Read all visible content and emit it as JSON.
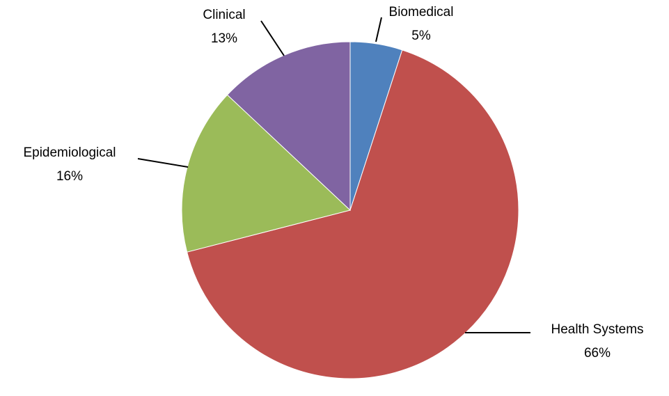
{
  "chart_data": {
    "type": "pie",
    "categories": [
      "Biomedical",
      "Health Systems",
      "Epidemiological",
      "Clinical"
    ],
    "values": [
      5,
      66,
      16,
      13
    ],
    "value_labels": [
      "5%",
      "66%",
      "16%",
      "13%"
    ],
    "colors": [
      "#4f81bd",
      "#c0504d",
      "#9bbb59",
      "#8064a2"
    ]
  }
}
